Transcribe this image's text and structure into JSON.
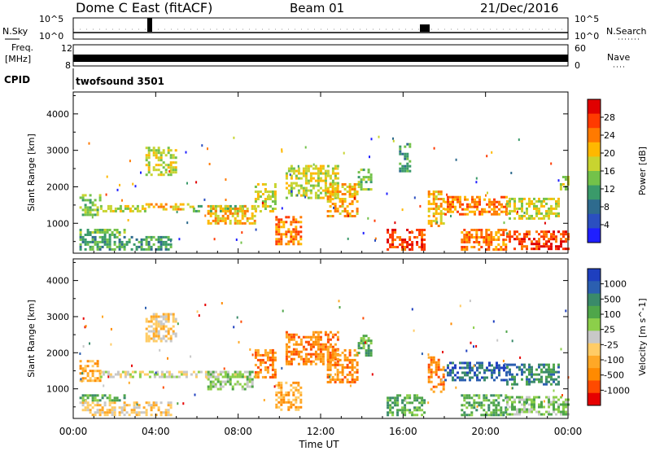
{
  "header": {
    "title": "Dome C East (fitACF)",
    "beam": "Beam 01",
    "date": "21/Dec/2016"
  },
  "strips": {
    "nsky_label": "N.Sky",
    "nsky_ticks": [
      "10^5",
      "10^0"
    ],
    "nsearch_label": "N.Search",
    "nsearch_ticks": [
      "10^5",
      "10^0"
    ],
    "freq_label_1": "Freq.",
    "freq_label_2": "[MHz]",
    "freq_ticks": [
      "12",
      "8"
    ],
    "nave_label": "Nave",
    "nave_ticks": [
      "60",
      "0"
    ],
    "cpid_label": "CPID",
    "cpid_value": "twofsound 3501"
  },
  "chart_data": [
    {
      "type": "heatmap",
      "name": "Power",
      "ylabel": "Slant Range [km]",
      "xlabel": "Time UT",
      "x_ticks": [
        "00:00",
        "04:00",
        "08:00",
        "12:00",
        "16:00",
        "20:00",
        "00:00"
      ],
      "y_ticks": [
        "1000",
        "2000",
        "3000",
        "4000"
      ],
      "ylim": [
        180,
        4600
      ],
      "xlim_hours": [
        0,
        24
      ],
      "colorbar": {
        "label": "Power [dB]",
        "ticks": [
          "4",
          "8",
          "12",
          "16",
          "20",
          "24",
          "28"
        ],
        "colors": [
          "#1f1fff",
          "#2b4fc0",
          "#2e6b8e",
          "#3a9a6a",
          "#73c24a",
          "#c8d430",
          "#ffb800",
          "#ff7a00",
          "#ff3a00",
          "#e00000"
        ]
      },
      "regions": [
        {
          "t0": 0.3,
          "t1": 1.3,
          "r0": 1200,
          "r1": 1800,
          "level": 4
        },
        {
          "t0": 1.3,
          "t1": 3.5,
          "r0": 1300,
          "r1": 1500,
          "level": 5
        },
        {
          "t0": 3.5,
          "t1": 5.8,
          "r0": 1350,
          "r1": 1550,
          "level": 6
        },
        {
          "t0": 5.8,
          "t1": 8.3,
          "r0": 1300,
          "r1": 1500,
          "level": 4
        },
        {
          "t0": 0.3,
          "t1": 4.8,
          "r0": 300,
          "r1": 650,
          "level": 3
        },
        {
          "t0": 0.3,
          "t1": 2.5,
          "r0": 650,
          "r1": 850,
          "level": 4
        },
        {
          "t0": 3.5,
          "t1": 5.0,
          "r0": 2300,
          "r1": 3100,
          "level": 5
        },
        {
          "t0": 6.5,
          "t1": 8.8,
          "r0": 1000,
          "r1": 1500,
          "level": 6
        },
        {
          "t0": 8.8,
          "t1": 9.8,
          "r0": 1300,
          "r1": 2100,
          "level": 5
        },
        {
          "t0": 9.8,
          "t1": 11.0,
          "r0": 400,
          "r1": 1200,
          "level": 7
        },
        {
          "t0": 10.3,
          "t1": 12.8,
          "r0": 1700,
          "r1": 2600,
          "level": 5
        },
        {
          "t0": 12.3,
          "t1": 13.8,
          "r0": 1200,
          "r1": 2100,
          "level": 6
        },
        {
          "t0": 13.8,
          "t1": 14.5,
          "r0": 1900,
          "r1": 2500,
          "level": 4
        },
        {
          "t0": 15.8,
          "t1": 16.3,
          "r0": 2400,
          "r1": 3200,
          "level": 3
        },
        {
          "t0": 15.2,
          "t1": 17.0,
          "r0": 300,
          "r1": 850,
          "level": 8
        },
        {
          "t0": 17.2,
          "t1": 18.0,
          "r0": 900,
          "r1": 1900,
          "level": 6
        },
        {
          "t0": 18.0,
          "t1": 21.0,
          "r0": 1250,
          "r1": 1750,
          "level": 7
        },
        {
          "t0": 21.0,
          "t1": 23.5,
          "r0": 1100,
          "r1": 1700,
          "level": 5
        },
        {
          "t0": 18.8,
          "t1": 21.0,
          "r0": 300,
          "r1": 850,
          "level": 7
        },
        {
          "t0": 21.0,
          "t1": 24.0,
          "r0": 300,
          "r1": 800,
          "level": 8
        },
        {
          "t0": 23.6,
          "t1": 24.0,
          "r0": 1900,
          "r1": 2300,
          "level": 5
        }
      ]
    },
    {
      "type": "heatmap",
      "name": "Velocity",
      "ylabel": "Slant Range [km]",
      "xlabel": "Time UT",
      "x_ticks": [
        "00:00",
        "04:00",
        "08:00",
        "12:00",
        "16:00",
        "20:00",
        "00:00"
      ],
      "y_ticks": [
        "1000",
        "2000",
        "3000",
        "4000"
      ],
      "ylim": [
        180,
        4600
      ],
      "xlim_hours": [
        0,
        24
      ],
      "colorbar": {
        "label": "Velocity [m s^-1]",
        "ticks": [
          "1000",
          "500",
          "100",
          "25",
          "-25",
          "-100",
          "-500",
          "-1000"
        ],
        "colors": [
          "#1e3fbf",
          "#2b5fb0",
          "#3a8a6a",
          "#4fa64a",
          "#8ccf4a",
          "#c8c8c8",
          "#ffcc66",
          "#ffa826",
          "#ff8a00",
          "#ff4a00",
          "#e60000"
        ]
      },
      "regions": [
        {
          "t0": 0.3,
          "t1": 1.3,
          "r0": 1200,
          "r1": 1800,
          "level": 7
        },
        {
          "t0": 1.3,
          "t1": 5.8,
          "r0": 1300,
          "r1": 1500,
          "level": 5
        },
        {
          "t0": 5.8,
          "t1": 8.3,
          "r0": 1300,
          "r1": 1500,
          "level": 5
        },
        {
          "t0": 0.3,
          "t1": 4.8,
          "r0": 300,
          "r1": 650,
          "level": 6
        },
        {
          "t0": 0.3,
          "t1": 2.5,
          "r0": 650,
          "r1": 850,
          "level": 3
        },
        {
          "t0": 3.5,
          "t1": 5.0,
          "r0": 2300,
          "r1": 3100,
          "level": 6
        },
        {
          "t0": 6.5,
          "t1": 8.8,
          "r0": 1000,
          "r1": 1500,
          "level": 4
        },
        {
          "t0": 8.8,
          "t1": 9.8,
          "r0": 1300,
          "r1": 2100,
          "level": 8
        },
        {
          "t0": 9.8,
          "t1": 11.0,
          "r0": 400,
          "r1": 1200,
          "level": 7
        },
        {
          "t0": 10.3,
          "t1": 12.8,
          "r0": 1700,
          "r1": 2600,
          "level": 8
        },
        {
          "t0": 12.3,
          "t1": 13.8,
          "r0": 1200,
          "r1": 2100,
          "level": 8
        },
        {
          "t0": 13.8,
          "t1": 14.5,
          "r0": 1900,
          "r1": 2500,
          "level": 3
        },
        {
          "t0": 15.2,
          "t1": 17.0,
          "r0": 300,
          "r1": 850,
          "level": 3
        },
        {
          "t0": 17.2,
          "t1": 18.0,
          "r0": 900,
          "r1": 1900,
          "level": 8
        },
        {
          "t0": 18.0,
          "t1": 21.0,
          "r0": 1250,
          "r1": 1750,
          "level": 1
        },
        {
          "t0": 21.0,
          "t1": 23.5,
          "r0": 1100,
          "r1": 1700,
          "level": 2
        },
        {
          "t0": 18.8,
          "t1": 21.0,
          "r0": 300,
          "r1": 850,
          "level": 3
        },
        {
          "t0": 21.0,
          "t1": 24.0,
          "r0": 300,
          "r1": 800,
          "level": 4
        }
      ]
    }
  ]
}
